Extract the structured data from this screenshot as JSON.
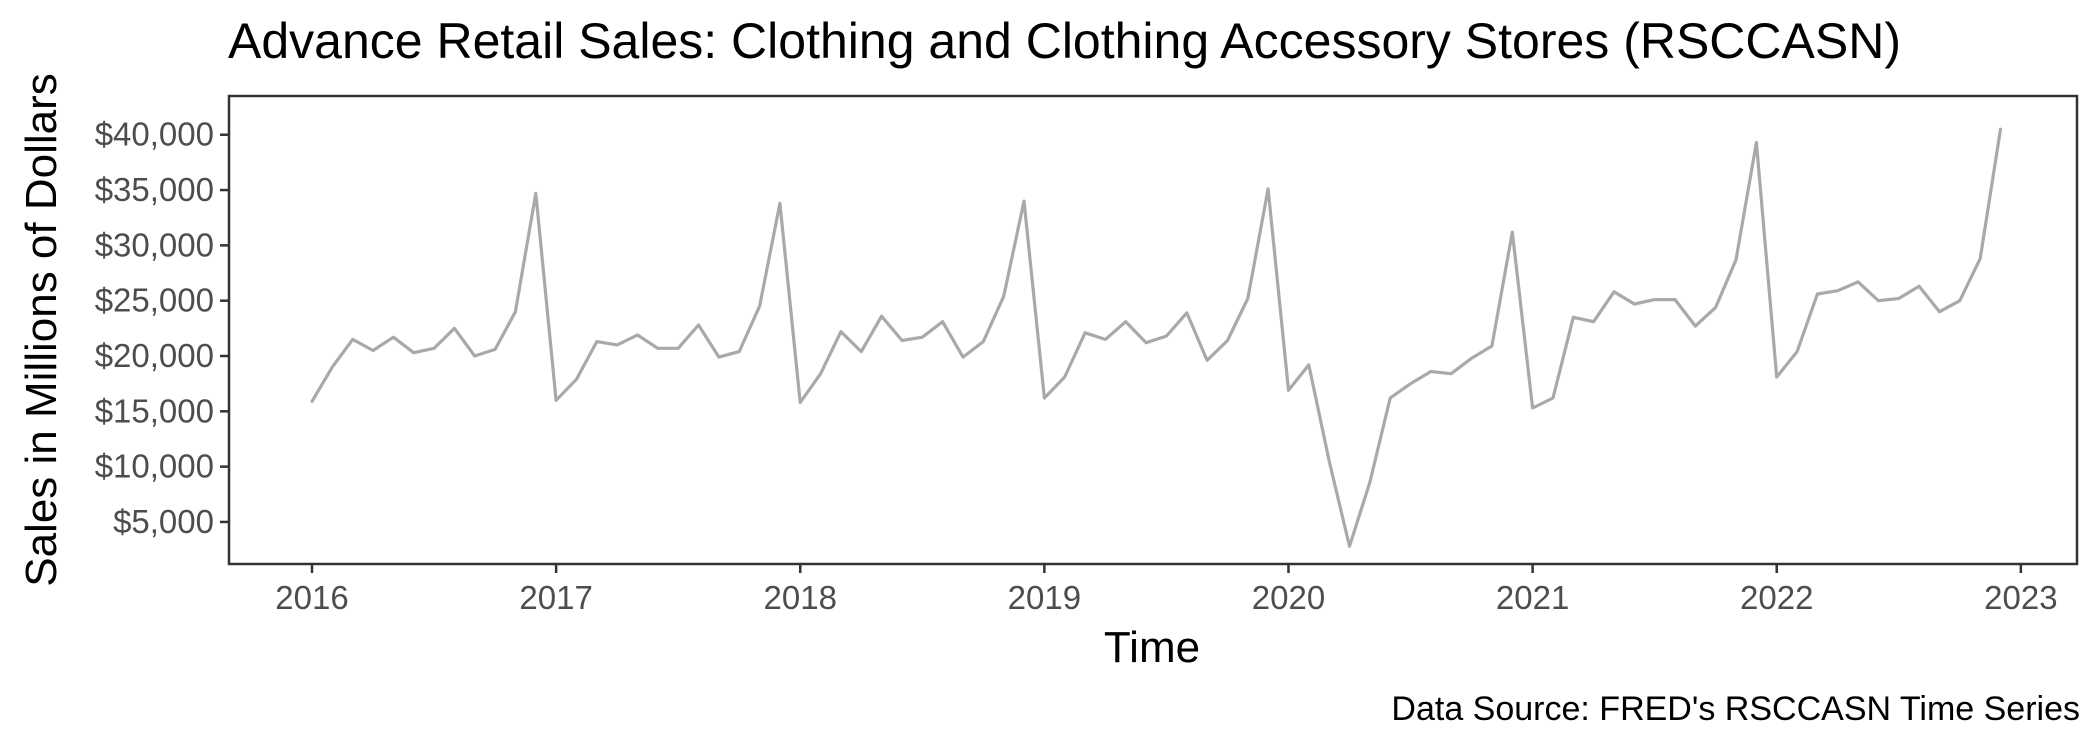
{
  "chart_data": {
    "type": "line",
    "title": "Advance Retail Sales: Clothing and Clothing Accessory Stores (RSCCASN)",
    "xlabel": "Time",
    "ylabel": "Sales in Millions of Dollars",
    "caption": "Data Source: FRED's RSCCASN Time Series",
    "xlim": [
      2015.66,
      2023.23
    ],
    "ylim": [
      1200,
      43500
    ],
    "x_ticks": [
      2016,
      2017,
      2018,
      2019,
      2020,
      2021,
      2022,
      2023
    ],
    "x_tick_labels": [
      "2016",
      "2017",
      "2018",
      "2019",
      "2020",
      "2021",
      "2022",
      "2023"
    ],
    "y_ticks": [
      5000,
      10000,
      15000,
      20000,
      25000,
      30000,
      35000,
      40000
    ],
    "y_tick_labels": [
      "$5,000",
      "$10,000",
      "$15,000",
      "$20,000",
      "$25,000",
      "$30,000",
      "$35,000",
      "$40,000"
    ],
    "grid": false,
    "line_color": "#a9a9a9",
    "series": [
      {
        "start": "2016-01",
        "frequency": "monthly",
        "values": [
          15900,
          19000,
          21500,
          20500,
          21700,
          20300,
          20700,
          22500,
          20000,
          20600,
          24000,
          34700,
          16000,
          17900,
          21300,
          21000,
          21900,
          20700,
          20700,
          22800,
          19900,
          20400,
          24500,
          33800,
          15800,
          18400,
          22200,
          20400,
          23600,
          21400,
          21700,
          23100,
          19900,
          21300,
          25400,
          34000,
          16200,
          18100,
          22100,
          21500,
          23100,
          21200,
          21800,
          23900,
          19600,
          21400,
          25200,
          35100,
          16900,
          19200,
          10500,
          2800,
          8600,
          16200,
          17500,
          18600,
          18400,
          19800,
          20900,
          31200,
          15300,
          16200,
          23500,
          23100,
          25800,
          24700,
          25100,
          25100,
          22700,
          24400,
          28700,
          39300,
          18100,
          20400,
          25600,
          25900,
          26700,
          25000,
          25200,
          26300,
          24000,
          25000,
          28800,
          40500
        ]
      }
    ]
  }
}
